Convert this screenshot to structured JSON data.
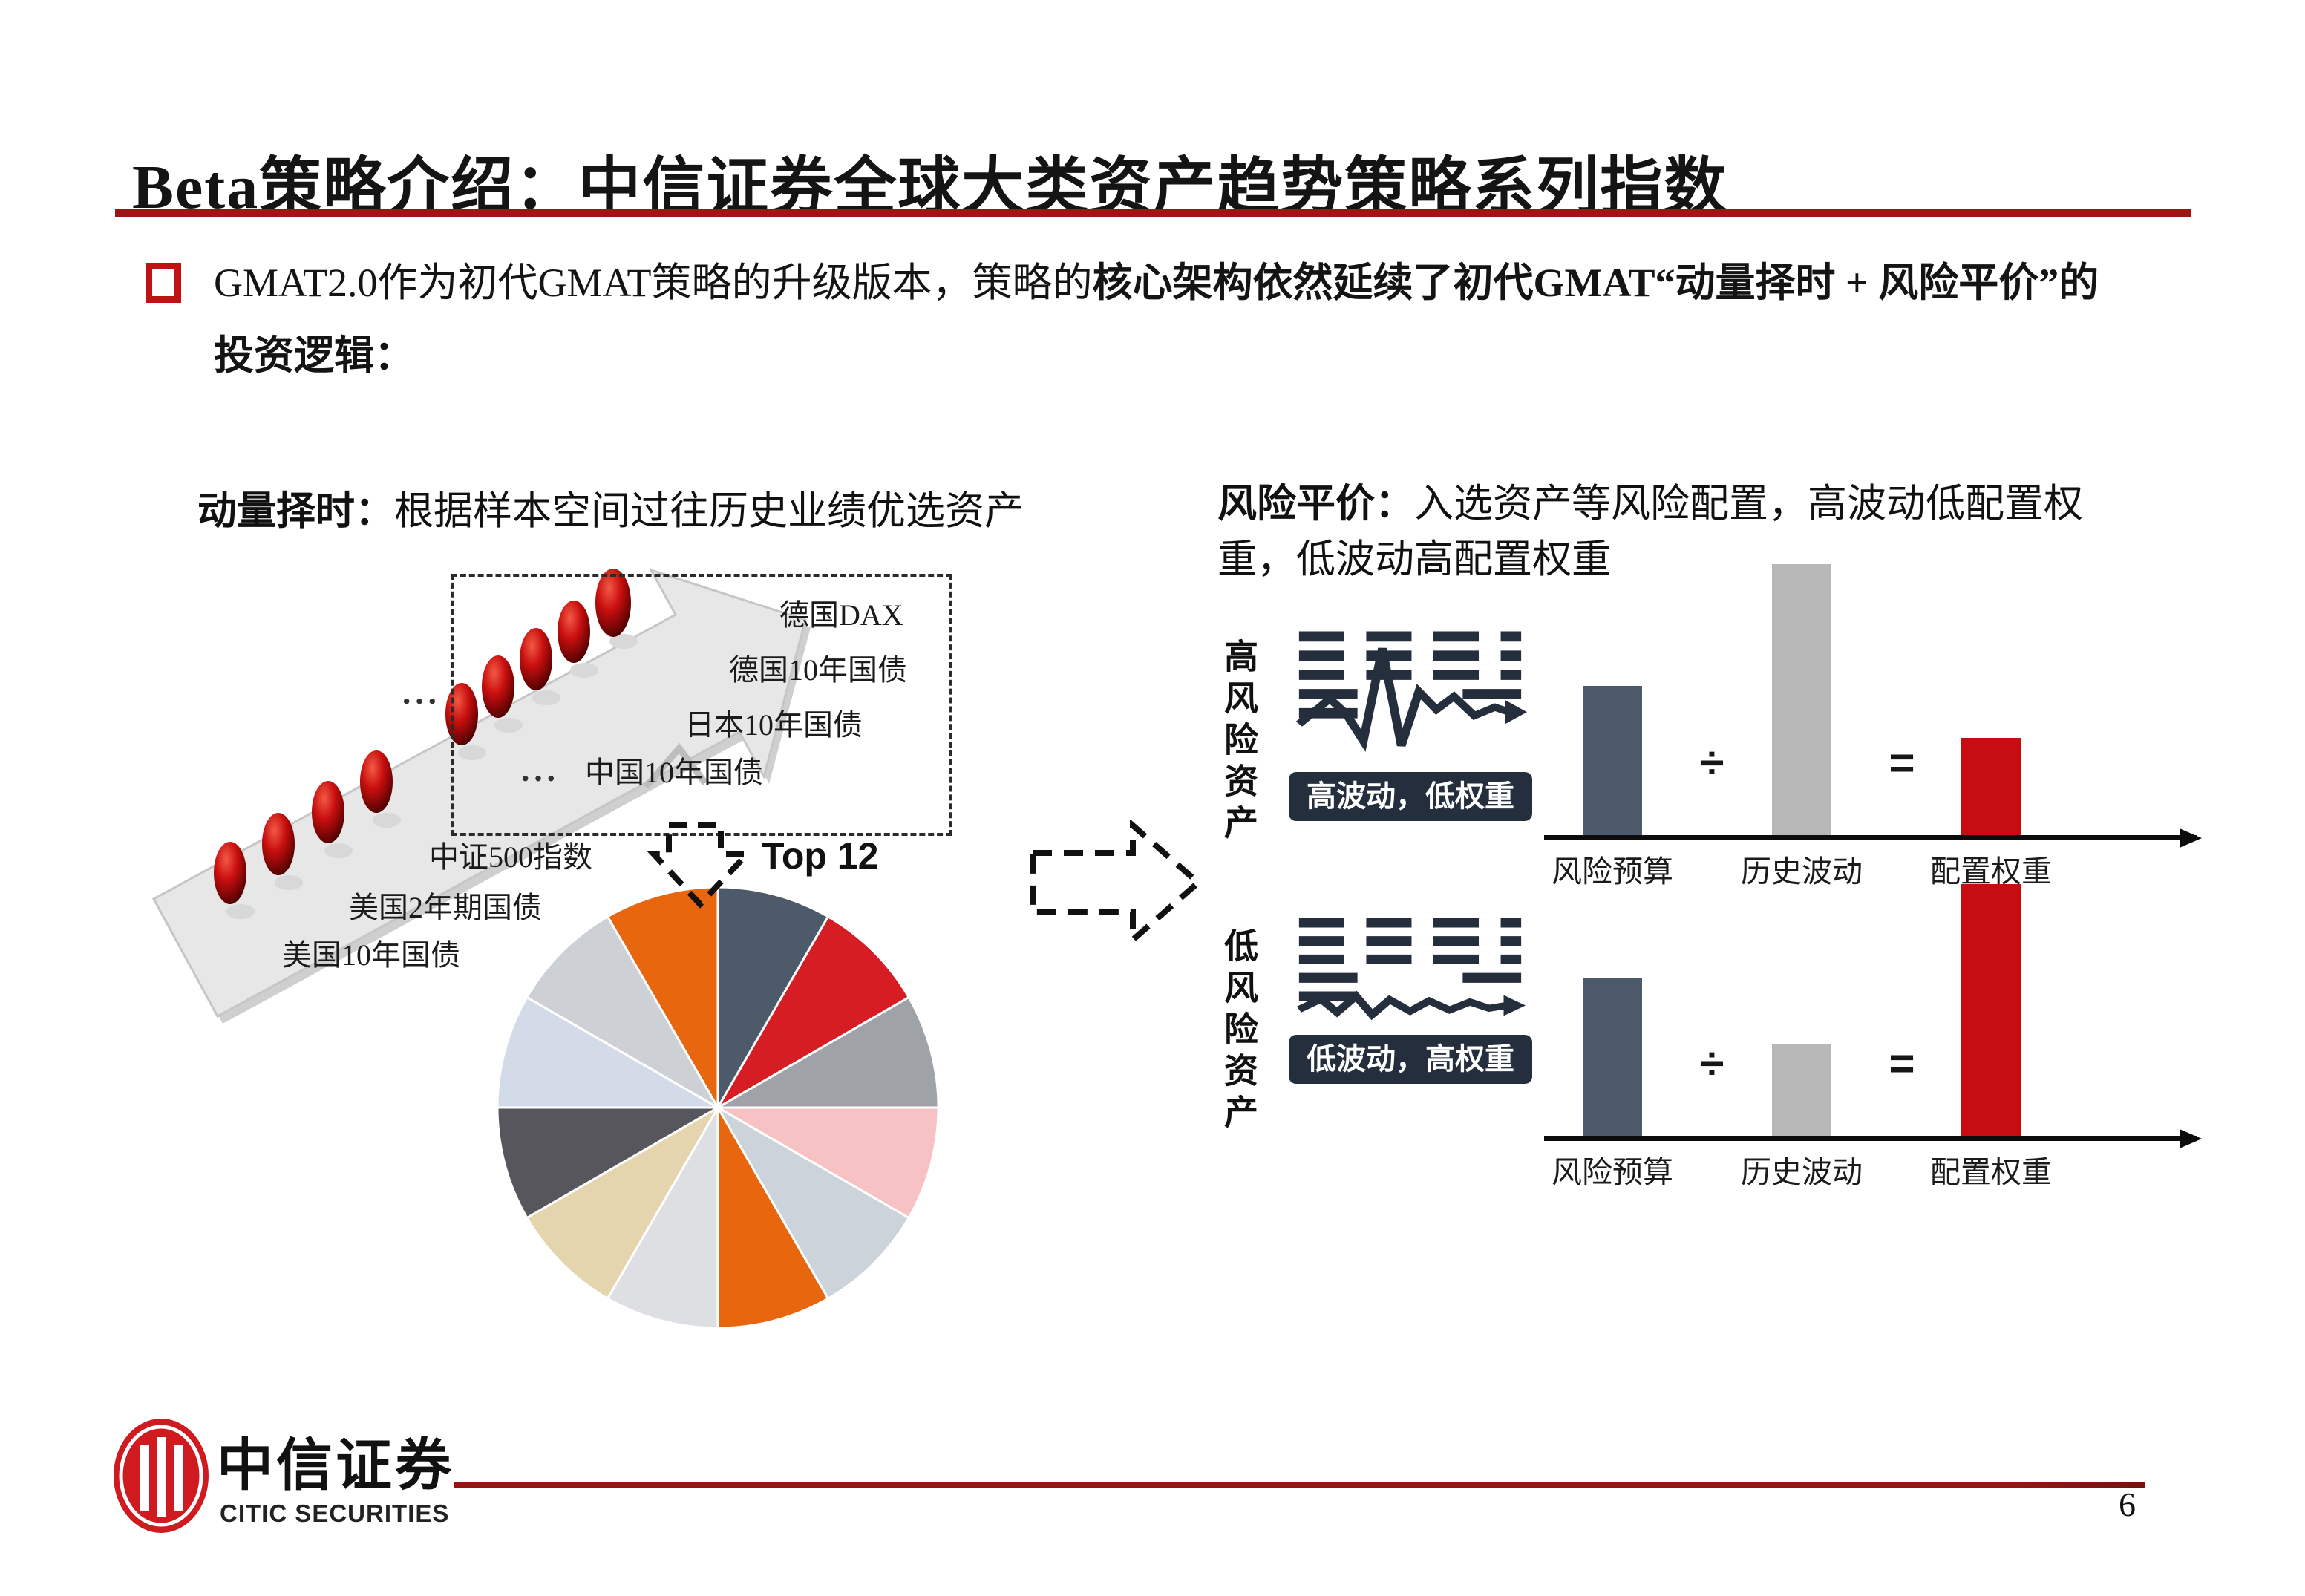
{
  "slide": {
    "title_latin": "Beta",
    "title_rest": "策略介绍：中信证券全球大类资产趋势策略系列指数",
    "page_number": "6"
  },
  "bullet": {
    "regular": "GMAT2.0作为初代GMAT策略的升级版本，策略的",
    "bold": "核心架构依然延续了初代GMAT“动量择时 + 风险平价”的",
    "line2": "投资逻辑："
  },
  "momentum": {
    "heading_bold": "动量择时：",
    "heading_rest": "根据样本空间过往历史业绩优选资产",
    "ellipsis": "···",
    "assets_in_box": [
      "德国DAX",
      "德国10年国债",
      "日本10年国债",
      "中国10年国债"
    ],
    "assets_below": [
      "中证500指数",
      "美国2年期国债",
      "美国10年国债"
    ],
    "top_label": "Top 12"
  },
  "risk_parity": {
    "heading_bold": "风险平价：",
    "heading_rest": "入选资产等风险配置，高波动低配置权重，低波动高配置权重",
    "rows": [
      {
        "side_label": "高风险资产",
        "badge": "高波动，低权重"
      },
      {
        "side_label": "低风险资产",
        "badge": "低波动，高权重"
      }
    ]
  },
  "footer": {
    "logo_cn": "中信证券",
    "logo_en": "CITIC SECURITIES"
  },
  "colors": {
    "title_rule_red": "#9e1515",
    "footer_rule_red": "#9c1313",
    "bullet_red": "#c01212",
    "icon_navy": "#242e3c",
    "bar_dark": "#4d5a69",
    "bar_gray": "#b7b7b7",
    "bar_red": "#c60d12"
  },
  "chart_data": [
    {
      "type": "pie",
      "title": "Top 12",
      "legend": false,
      "slices": [
        {
          "color": "#4d5a69",
          "value": 1
        },
        {
          "color": "#d71d24",
          "value": 1
        },
        {
          "color": "#9fa3a8",
          "value": 1
        },
        {
          "color": "#f7c2c3",
          "value": 1
        },
        {
          "color": "#ccd3da",
          "value": 1
        },
        {
          "color": "#e8660e",
          "value": 1
        },
        {
          "color": "#dddfe3",
          "value": 1
        },
        {
          "color": "#e5d5ae",
          "value": 1
        },
        {
          "color": "#56565c",
          "value": 1
        },
        {
          "color": "#d3dbe9",
          "value": 1
        },
        {
          "color": "#cdd1d5",
          "value": 1
        },
        {
          "color": "#e8660e",
          "value": 1
        }
      ]
    },
    {
      "type": "bar",
      "group": "高风险资产",
      "categories": [
        "风险预算",
        "历史波动",
        "配置权重"
      ],
      "values": [
        55,
        100,
        36
      ],
      "colors": [
        "#4d5a69",
        "#b7b7b7",
        "#c60d12"
      ],
      "operators": [
        "÷",
        "="
      ],
      "ylim": [
        0,
        100
      ],
      "grid": false
    },
    {
      "type": "bar",
      "group": "低风险资产",
      "categories": [
        "风险预算",
        "历史波动",
        "配置权重"
      ],
      "values": [
        58,
        34,
        93
      ],
      "colors": [
        "#4d5a69",
        "#b7b7b7",
        "#c60d12"
      ],
      "operators": [
        "÷",
        "="
      ],
      "ylim": [
        0,
        100
      ],
      "grid": false
    }
  ]
}
